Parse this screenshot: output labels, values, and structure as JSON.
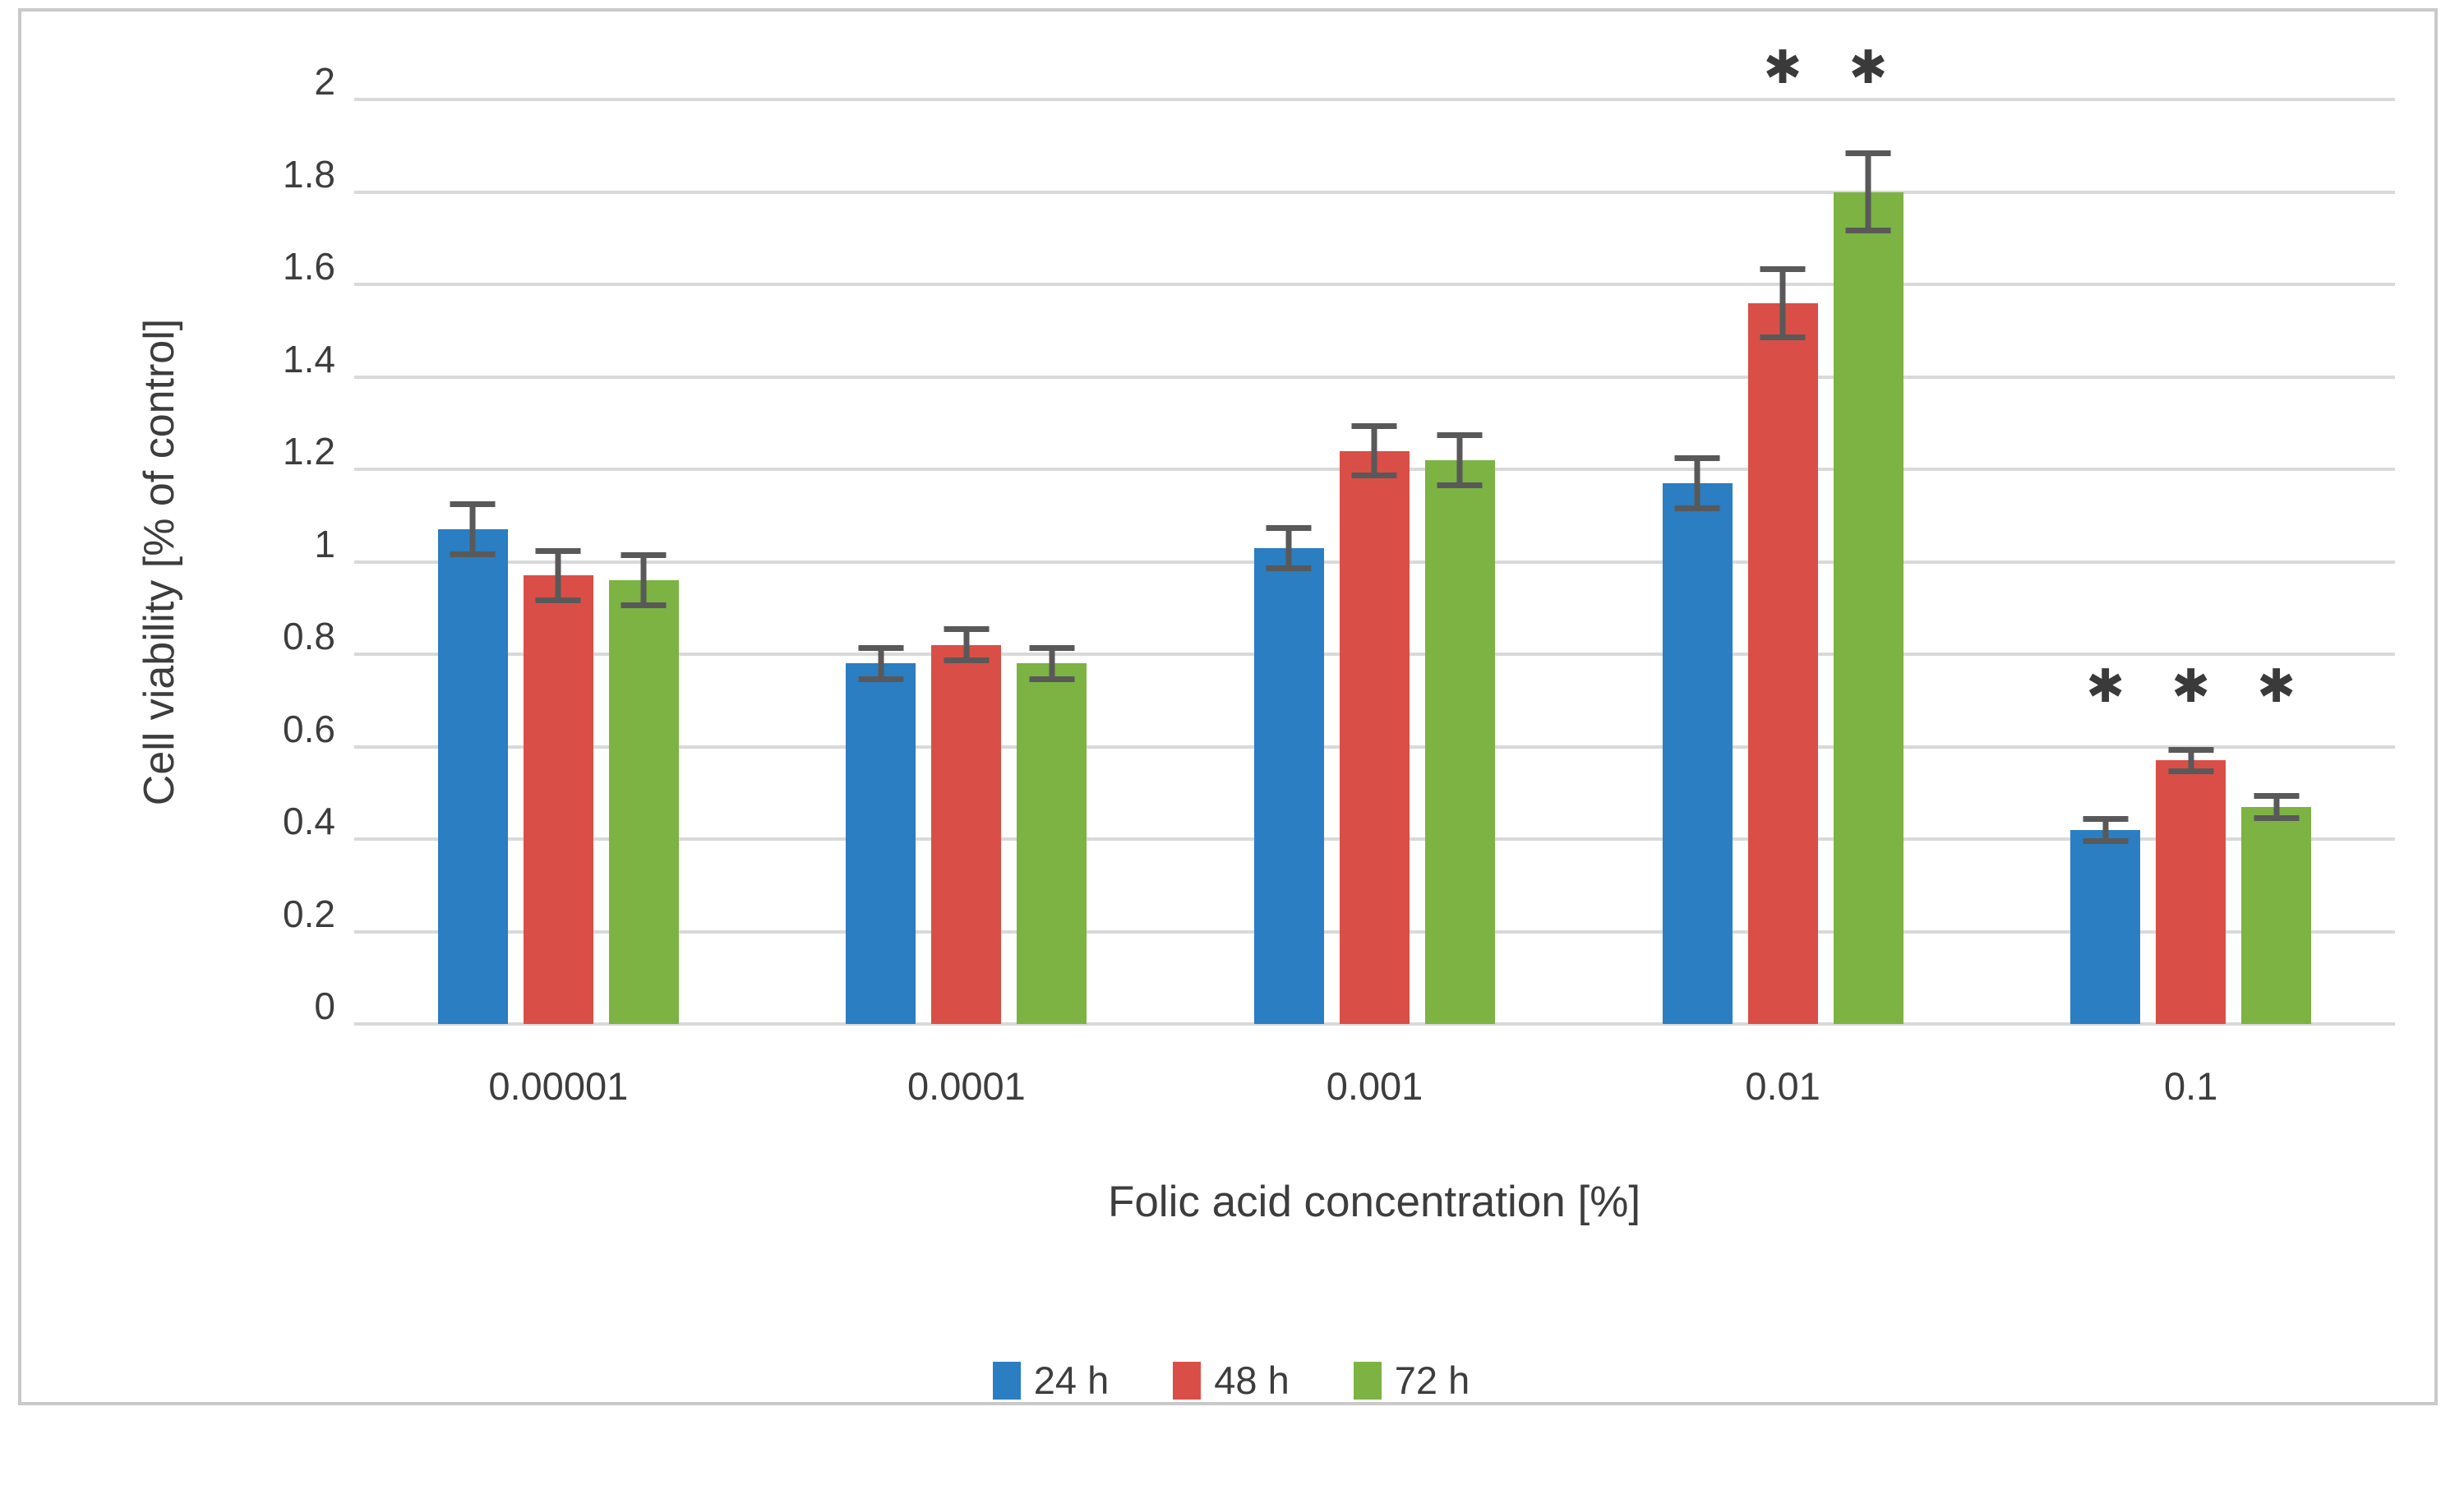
{
  "chart_data": {
    "type": "bar",
    "title": "",
    "xlabel": "Folic acid concentration [%]",
    "ylabel": "Cell viability [% of control]",
    "categories": [
      "0.00001",
      "0.0001",
      "0.001",
      "0.01",
      "0.1"
    ],
    "series": [
      {
        "name": "24 h",
        "color": "#2a7ec1",
        "values": [
          1.07,
          0.78,
          1.03,
          1.17,
          0.42
        ],
        "errors": [
          0.06,
          0.04,
          0.05,
          0.06,
          0.03
        ]
      },
      {
        "name": "48 h",
        "color": "#d94f47",
        "values": [
          0.97,
          0.82,
          1.24,
          1.56,
          0.57
        ],
        "errors": [
          0.06,
          0.04,
          0.06,
          0.08,
          0.03
        ]
      },
      {
        "name": "72 h",
        "color": "#7cb342",
        "values": [
          0.96,
          0.78,
          1.22,
          1.8,
          0.47
        ],
        "errors": [
          0.06,
          0.04,
          0.06,
          0.09,
          0.03
        ]
      }
    ],
    "y_ticks": [
      "2",
      "1.8",
      "1.6",
      "1.4",
      "1.2",
      "1",
      "0.8",
      "0.6",
      "0.4",
      "0.2",
      "0"
    ],
    "ylim": [
      0,
      2
    ],
    "y_step": 0.2,
    "grid": true,
    "legend_position": "bottom",
    "significance": [
      {
        "category_index": 3,
        "series_indices": [
          1,
          2
        ],
        "marker": "*",
        "at_value": 2.07
      },
      {
        "category_index": 4,
        "series_indices": [
          0,
          1,
          2
        ],
        "marker": "*",
        "at_value": 0.73
      }
    ],
    "colors": {
      "error_bar": "#595959",
      "gridline": "#d9d9d9",
      "axis_line": "#d9d9d9",
      "text": "#3d3d3d",
      "frame_border": "#c9c9c9",
      "background": "#ffffff"
    }
  }
}
